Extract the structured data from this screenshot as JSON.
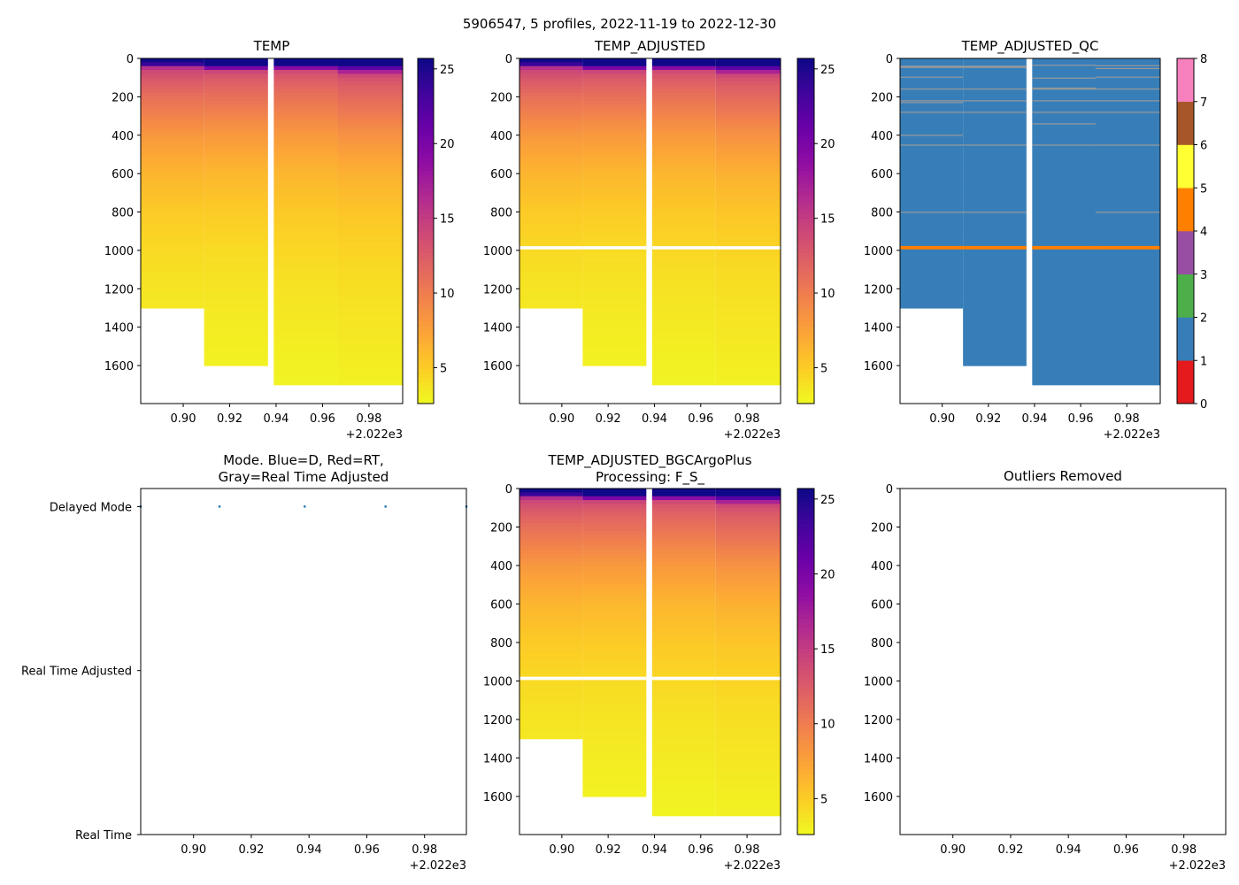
{
  "figure_title": "5906547, 5 profiles, 2022-11-19 to 2022-12-30",
  "colors": {
    "qc": [
      "#e41a1c",
      "#377eb8",
      "#4daf4a",
      "#984ea3",
      "#ff7f00",
      "#ffff33",
      "#a65628",
      "#f781bf",
      "#999999"
    ],
    "mode_point": "#1f77b4",
    "missing": "#ffffff"
  },
  "chart_data": {
    "type": "heatmap",
    "x_offset_label": "+2.022e3",
    "x_ticks": [
      0.9,
      0.92,
      0.94,
      0.96,
      0.98
    ],
    "x_tick_labels": [
      "0.90",
      "0.92",
      "0.94",
      "0.96",
      "0.98"
    ],
    "xlim": [
      0.8817,
      0.9945
    ],
    "depth_ylim": [
      1798,
      0
    ],
    "depth_ticks": [
      0,
      200,
      400,
      600,
      800,
      1000,
      1200,
      1400,
      1600
    ],
    "depth_tick_labels": [
      "0",
      "200",
      "400",
      "600",
      "800",
      "1000",
      "1200",
      "1400",
      "1600"
    ],
    "temp_colorbar": {
      "vmin": 2.6,
      "vmax": 25.7,
      "ticks": [
        5,
        10,
        15,
        20,
        25
      ],
      "tick_labels": [
        "5",
        "10",
        "15",
        "20",
        "25"
      ],
      "colormap": "plasma_r"
    },
    "qc_colorbar": {
      "vmin": 0,
      "vmax": 8,
      "ticks": [
        0,
        1,
        2,
        3,
        4,
        5,
        6,
        7,
        8
      ],
      "tick_labels": [
        "0",
        "1",
        "2",
        "3",
        "4",
        "5",
        "6",
        "7",
        "8"
      ]
    },
    "profiles": [
      {
        "x0": 0.8817,
        "x1": 0.909,
        "max_depth": 1300,
        "depths": [
          0,
          25,
          35,
          50,
          70,
          100,
          150,
          200,
          300,
          400,
          500,
          600,
          800,
          1000,
          1200,
          1300
        ],
        "temps": [
          25.6,
          25.6,
          22,
          16,
          14,
          13,
          12,
          11,
          9.6,
          8.2,
          7.2,
          6.3,
          5.1,
          4.3,
          3.7,
          3.5
        ],
        "qc8_depths": [
          38,
          95,
          157,
          218,
          227,
          278,
          398,
          449,
          799
        ]
      },
      {
        "x0": 0.909,
        "x1": 0.9365,
        "max_depth": 1600,
        "depths": [
          0,
          40,
          50,
          60,
          80,
          100,
          150,
          200,
          300,
          400,
          500,
          600,
          800,
          1000,
          1200,
          1400,
          1600
        ],
        "temps": [
          25.6,
          25.6,
          20,
          15,
          13.5,
          12.8,
          11.8,
          11,
          9.5,
          8.1,
          7.1,
          6.2,
          5.1,
          4.2,
          3.7,
          3.3,
          3.0
        ],
        "qc8_depths": [
          38,
          157,
          218,
          278,
          449,
          799
        ]
      },
      {
        "x0": 0.939,
        "x1": 0.9665,
        "max_depth": 1700,
        "depths": [
          0,
          40,
          50,
          60,
          80,
          100,
          150,
          200,
          300,
          400,
          500,
          600,
          800,
          1000,
          1200,
          1400,
          1600,
          1700
        ],
        "temps": [
          25.6,
          25.6,
          19,
          14.5,
          13.2,
          12.6,
          11.6,
          10.8,
          9.4,
          8.1,
          7.1,
          6.3,
          5.2,
          4.4,
          3.8,
          3.4,
          3.0,
          2.9
        ],
        "qc8_depths": [
          33,
          100,
          152,
          157,
          218,
          278,
          338,
          449
        ]
      },
      {
        "x0": 0.9665,
        "x1": 0.9945,
        "max_depth": 1700,
        "depths": [
          0,
          30,
          50,
          70,
          90,
          120,
          150,
          200,
          300,
          400,
          500,
          600,
          800,
          1000,
          1200,
          1400,
          1600,
          1700
        ],
        "temps": [
          25.6,
          25.6,
          22,
          17,
          14,
          12.8,
          12.2,
          11.5,
          10,
          8.6,
          7.5,
          6.6,
          5.4,
          4.6,
          4.0,
          3.6,
          3.2,
          3.0
        ],
        "qc8_depths": [
          35,
          50,
          95,
          157,
          218,
          278,
          449,
          799
        ]
      }
    ],
    "adjusted_gap_depths": [
      978,
      995
    ],
    "qc4_band_depths": [
      977,
      995
    ],
    "mode": {
      "categories": [
        "Real Time",
        "Real Time Adjusted",
        "Delayed Mode"
      ],
      "ylim": [
        0,
        2.11
      ],
      "points_x": [
        0.8817,
        0.909,
        0.9385,
        0.9665,
        0.9945
      ],
      "points_mode": [
        2,
        2,
        2,
        2,
        2
      ]
    },
    "panels": [
      {
        "title": "TEMP",
        "kind": "temp"
      },
      {
        "title": "TEMP_ADJUSTED",
        "kind": "temp_adj"
      },
      {
        "title": "TEMP_ADJUSTED_QC",
        "kind": "qc"
      },
      {
        "title": "Mode. Blue=D, Red=RT,\nGray=Real Time Adjusted",
        "title_lines": [
          "Mode. Blue=D, Red=RT,",
          "Gray=Real Time Adjusted"
        ],
        "kind": "mode"
      },
      {
        "title": "TEMP_ADJUSTED_BGCArgoPlus\nProcessing: F_S_",
        "title_lines": [
          "TEMP_ADJUSTED_BGCArgoPlus",
          "Processing: F_S_"
        ],
        "kind": "temp_adj"
      },
      {
        "title": "Outliers Removed",
        "kind": "empty"
      }
    ]
  }
}
